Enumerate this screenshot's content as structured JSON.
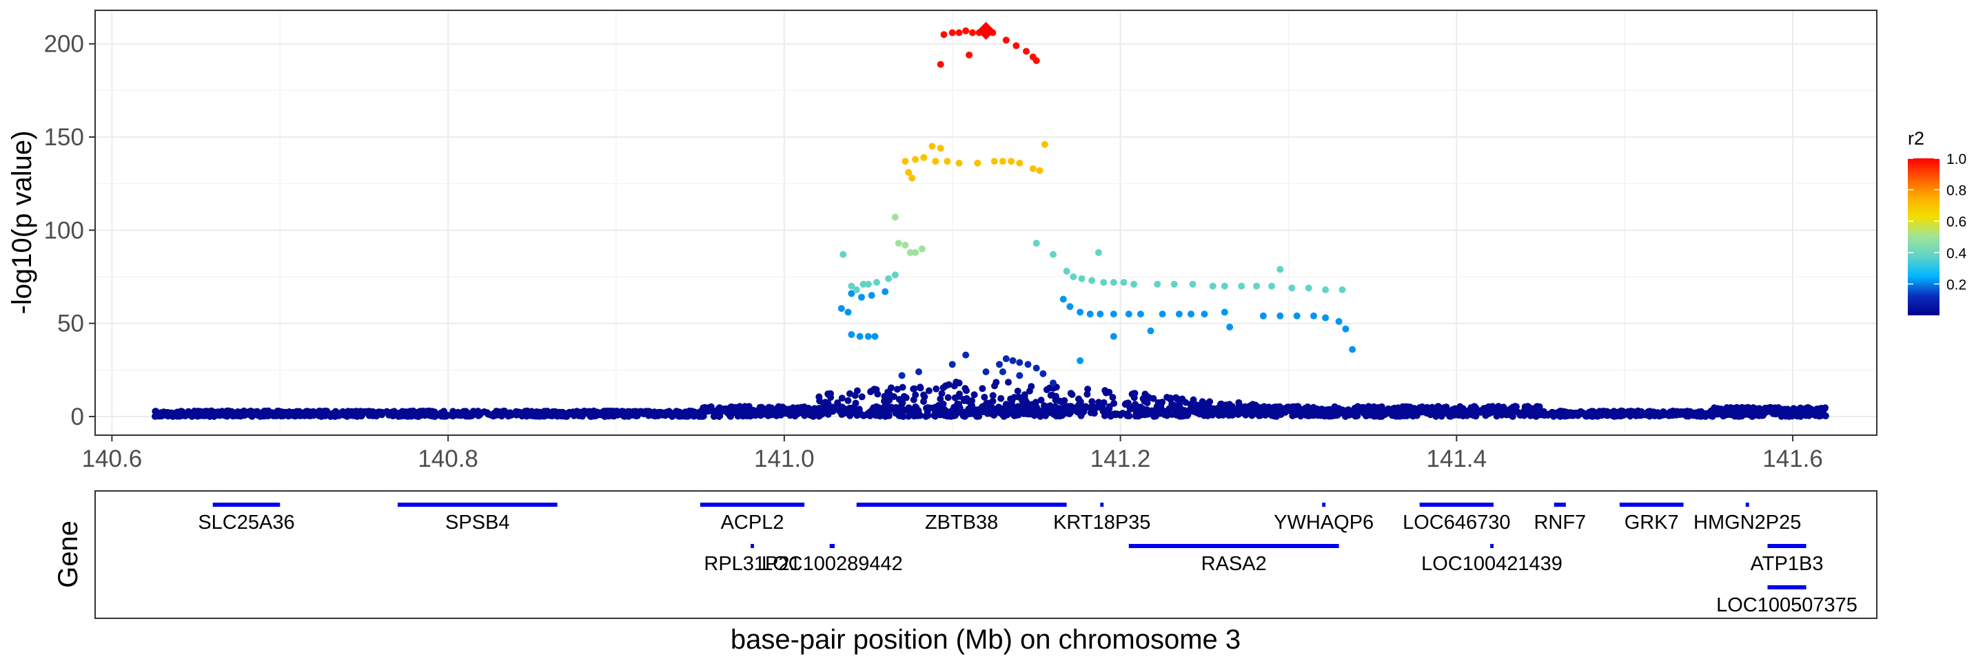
{
  "chart_data": [
    {
      "type": "scatter",
      "panel": "association",
      "title": "",
      "xlabel": "",
      "ylabel": "-log10(p value)",
      "xlim": [
        140.59,
        141.65
      ],
      "ylim": [
        -10,
        218
      ],
      "x_ticks": [
        140.6,
        140.8,
        141.0,
        141.2,
        141.4,
        141.6
      ],
      "x_tick_labels": [
        "140.6",
        "140.8",
        "141.0",
        "141.2",
        "141.4",
        "141.6"
      ],
      "y_ticks": [
        0,
        50,
        100,
        150,
        200
      ],
      "y_tick_labels": [
        "0",
        "50",
        "100",
        "150",
        "200"
      ],
      "grid": true,
      "lead_variant": {
        "x": 141.12,
        "y": 207,
        "r2": 1.0,
        "shape": "diamond"
      },
      "highlight_points": [
        {
          "x": 141.093,
          "y": 189,
          "r2": 0.98
        },
        {
          "x": 141.095,
          "y": 205,
          "r2": 0.98
        },
        {
          "x": 141.1,
          "y": 206,
          "r2": 0.98
        },
        {
          "x": 141.104,
          "y": 206,
          "r2": 0.98
        },
        {
          "x": 141.108,
          "y": 207,
          "r2": 0.98
        },
        {
          "x": 141.112,
          "y": 206,
          "r2": 0.98
        },
        {
          "x": 141.116,
          "y": 206,
          "r2": 0.98
        },
        {
          "x": 141.11,
          "y": 194,
          "r2": 0.98
        },
        {
          "x": 141.124,
          "y": 206,
          "r2": 0.98
        },
        {
          "x": 141.132,
          "y": 202,
          "r2": 0.98
        },
        {
          "x": 141.138,
          "y": 199,
          "r2": 0.98
        },
        {
          "x": 141.144,
          "y": 196,
          "r2": 0.98
        },
        {
          "x": 141.148,
          "y": 193,
          "r2": 0.98
        },
        {
          "x": 141.15,
          "y": 191,
          "r2": 0.98
        },
        {
          "x": 141.072,
          "y": 137,
          "r2": 0.7
        },
        {
          "x": 141.074,
          "y": 131,
          "r2": 0.7
        },
        {
          "x": 141.076,
          "y": 128,
          "r2": 0.7
        },
        {
          "x": 141.078,
          "y": 138,
          "r2": 0.7
        },
        {
          "x": 141.083,
          "y": 139,
          "r2": 0.7
        },
        {
          "x": 141.088,
          "y": 145,
          "r2": 0.7
        },
        {
          "x": 141.09,
          "y": 137,
          "r2": 0.7
        },
        {
          "x": 141.093,
          "y": 144,
          "r2": 0.7
        },
        {
          "x": 141.097,
          "y": 137,
          "r2": 0.7
        },
        {
          "x": 141.104,
          "y": 136,
          "r2": 0.7
        },
        {
          "x": 141.115,
          "y": 136,
          "r2": 0.7
        },
        {
          "x": 141.125,
          "y": 137,
          "r2": 0.7
        },
        {
          "x": 141.13,
          "y": 137,
          "r2": 0.7
        },
        {
          "x": 141.135,
          "y": 137,
          "r2": 0.7
        },
        {
          "x": 141.14,
          "y": 136,
          "r2": 0.7
        },
        {
          "x": 141.148,
          "y": 133,
          "r2": 0.7
        },
        {
          "x": 141.152,
          "y": 132,
          "r2": 0.7
        },
        {
          "x": 141.155,
          "y": 146,
          "r2": 0.7
        },
        {
          "x": 141.066,
          "y": 107,
          "r2": 0.5
        },
        {
          "x": 141.068,
          "y": 93,
          "r2": 0.5
        },
        {
          "x": 141.072,
          "y": 92,
          "r2": 0.5
        },
        {
          "x": 141.075,
          "y": 88,
          "r2": 0.5
        },
        {
          "x": 141.078,
          "y": 88,
          "r2": 0.5
        },
        {
          "x": 141.082,
          "y": 90,
          "r2": 0.5
        },
        {
          "x": 141.035,
          "y": 87,
          "r2": 0.38
        },
        {
          "x": 141.04,
          "y": 70,
          "r2": 0.38
        },
        {
          "x": 141.043,
          "y": 68,
          "r2": 0.38
        },
        {
          "x": 141.047,
          "y": 71,
          "r2": 0.38
        },
        {
          "x": 141.05,
          "y": 71,
          "r2": 0.38
        },
        {
          "x": 141.055,
          "y": 72,
          "r2": 0.38
        },
        {
          "x": 141.062,
          "y": 74,
          "r2": 0.38
        },
        {
          "x": 141.066,
          "y": 76,
          "r2": 0.38
        },
        {
          "x": 141.15,
          "y": 93,
          "r2": 0.38
        },
        {
          "x": 141.16,
          "y": 87,
          "r2": 0.38
        },
        {
          "x": 141.168,
          "y": 78,
          "r2": 0.38
        },
        {
          "x": 141.172,
          "y": 75,
          "r2": 0.38
        },
        {
          "x": 141.177,
          "y": 74,
          "r2": 0.38
        },
        {
          "x": 141.183,
          "y": 73,
          "r2": 0.38
        },
        {
          "x": 141.187,
          "y": 88,
          "r2": 0.38
        },
        {
          "x": 141.19,
          "y": 72,
          "r2": 0.38
        },
        {
          "x": 141.196,
          "y": 72,
          "r2": 0.38
        },
        {
          "x": 141.202,
          "y": 72,
          "r2": 0.38
        },
        {
          "x": 141.208,
          "y": 71,
          "r2": 0.38
        },
        {
          "x": 141.222,
          "y": 71,
          "r2": 0.38
        },
        {
          "x": 141.232,
          "y": 71,
          "r2": 0.38
        },
        {
          "x": 141.243,
          "y": 71,
          "r2": 0.38
        },
        {
          "x": 141.255,
          "y": 70,
          "r2": 0.38
        },
        {
          "x": 141.262,
          "y": 70,
          "r2": 0.38
        },
        {
          "x": 141.272,
          "y": 70,
          "r2": 0.38
        },
        {
          "x": 141.281,
          "y": 70,
          "r2": 0.38
        },
        {
          "x": 141.29,
          "y": 70,
          "r2": 0.38
        },
        {
          "x": 141.295,
          "y": 79,
          "r2": 0.38
        },
        {
          "x": 141.302,
          "y": 69,
          "r2": 0.38
        },
        {
          "x": 141.312,
          "y": 69,
          "r2": 0.38
        },
        {
          "x": 141.322,
          "y": 68,
          "r2": 0.38
        },
        {
          "x": 141.332,
          "y": 68,
          "r2": 0.38
        },
        {
          "x": 141.034,
          "y": 58,
          "r2": 0.22
        },
        {
          "x": 141.038,
          "y": 56,
          "r2": 0.22
        },
        {
          "x": 141.04,
          "y": 44,
          "r2": 0.22
        },
        {
          "x": 141.045,
          "y": 43,
          "r2": 0.22
        },
        {
          "x": 141.05,
          "y": 43,
          "r2": 0.22
        },
        {
          "x": 141.054,
          "y": 43,
          "r2": 0.22
        },
        {
          "x": 141.04,
          "y": 66,
          "r2": 0.22
        },
        {
          "x": 141.046,
          "y": 64,
          "r2": 0.22
        },
        {
          "x": 141.052,
          "y": 65,
          "r2": 0.22
        },
        {
          "x": 141.06,
          "y": 67,
          "r2": 0.22
        },
        {
          "x": 141.166,
          "y": 63,
          "r2": 0.22
        },
        {
          "x": 141.17,
          "y": 59,
          "r2": 0.22
        },
        {
          "x": 141.176,
          "y": 56,
          "r2": 0.22
        },
        {
          "x": 141.182,
          "y": 55,
          "r2": 0.22
        },
        {
          "x": 141.188,
          "y": 55,
          "r2": 0.22
        },
        {
          "x": 141.196,
          "y": 55,
          "r2": 0.22
        },
        {
          "x": 141.205,
          "y": 55,
          "r2": 0.22
        },
        {
          "x": 141.212,
          "y": 55,
          "r2": 0.22
        },
        {
          "x": 141.218,
          "y": 46,
          "r2": 0.22
        },
        {
          "x": 141.225,
          "y": 55,
          "r2": 0.22
        },
        {
          "x": 141.235,
          "y": 55,
          "r2": 0.22
        },
        {
          "x": 141.242,
          "y": 55,
          "r2": 0.22
        },
        {
          "x": 141.25,
          "y": 55,
          "r2": 0.22
        },
        {
          "x": 141.262,
          "y": 56,
          "r2": 0.22
        },
        {
          "x": 141.265,
          "y": 48,
          "r2": 0.22
        },
        {
          "x": 141.285,
          "y": 54,
          "r2": 0.22
        },
        {
          "x": 141.295,
          "y": 54,
          "r2": 0.22
        },
        {
          "x": 141.305,
          "y": 54,
          "r2": 0.22
        },
        {
          "x": 141.315,
          "y": 54,
          "r2": 0.22
        },
        {
          "x": 141.322,
          "y": 53,
          "r2": 0.22
        },
        {
          "x": 141.33,
          "y": 51,
          "r2": 0.22
        },
        {
          "x": 141.334,
          "y": 47,
          "r2": 0.22
        },
        {
          "x": 141.338,
          "y": 36,
          "r2": 0.22
        },
        {
          "x": 141.176,
          "y": 30,
          "r2": 0.22
        },
        {
          "x": 141.196,
          "y": 43,
          "r2": 0.22
        },
        {
          "x": 141.07,
          "y": 22,
          "r2": 0.1
        },
        {
          "x": 141.08,
          "y": 24,
          "r2": 0.1
        },
        {
          "x": 141.1,
          "y": 28,
          "r2": 0.1
        },
        {
          "x": 141.108,
          "y": 33,
          "r2": 0.1
        },
        {
          "x": 141.12,
          "y": 24,
          "r2": 0.1
        },
        {
          "x": 141.128,
          "y": 28,
          "r2": 0.1
        },
        {
          "x": 141.132,
          "y": 31,
          "r2": 0.1
        },
        {
          "x": 141.136,
          "y": 30,
          "r2": 0.1
        },
        {
          "x": 141.14,
          "y": 29,
          "r2": 0.1
        },
        {
          "x": 141.145,
          "y": 28,
          "r2": 0.1
        },
        {
          "x": 141.15,
          "y": 26,
          "r2": 0.1
        },
        {
          "x": 141.154,
          "y": 23,
          "r2": 0.1
        },
        {
          "x": 141.16,
          "y": 18,
          "r2": 0.1
        },
        {
          "x": 141.13,
          "y": 24,
          "r2": 0.1
        },
        {
          "x": 141.14,
          "y": 22,
          "r2": 0.1
        }
      ],
      "background_points": {
        "x_range": [
          140.625,
          141.62
        ],
        "r2": 0.02,
        "y_baseline_max": 3,
        "peak_region_x": [
          141.02,
          141.34
        ],
        "peak_region_y_max": 20
      },
      "colorbar": {
        "title": "r2",
        "range": [
          0,
          1
        ],
        "tick_values": [
          0.2,
          0.4,
          0.6,
          0.8,
          1.0
        ],
        "tick_labels": [
          "0.2",
          "0.4",
          "0.6",
          "0.8",
          "1.0"
        ],
        "color_stops": [
          "#00008b",
          "#0b2fbf",
          "#00b7ff",
          "#5fd3c8",
          "#9fe39a",
          "#f0e000",
          "#ffae00",
          "#ff5a00",
          "#ff0000"
        ]
      }
    },
    {
      "type": "gene-track",
      "panel": "genes",
      "ylabel": "Gene",
      "xlabel": "base-pair position (Mb) on chromosome 3",
      "xlim": [
        140.59,
        141.65
      ],
      "color": "#0000ee",
      "genes": [
        {
          "name": "SLC25A36",
          "start": 140.66,
          "end": 140.7,
          "row": 1
        },
        {
          "name": "SPSB4",
          "start": 140.77,
          "end": 140.865,
          "row": 1
        },
        {
          "name": "ACPL2",
          "start": 140.95,
          "end": 141.012,
          "row": 1
        },
        {
          "name": "ZBTB38",
          "start": 141.043,
          "end": 141.168,
          "row": 1
        },
        {
          "name": "KRT18P35",
          "start": 141.188,
          "end": 141.19,
          "row": 1
        },
        {
          "name": "YWHAQP6",
          "start": 141.32,
          "end": 141.322,
          "row": 1
        },
        {
          "name": "LOC646730",
          "start": 141.378,
          "end": 141.422,
          "row": 1
        },
        {
          "name": "RNF7",
          "start": 141.458,
          "end": 141.465,
          "row": 1
        },
        {
          "name": "GRK7",
          "start": 141.497,
          "end": 141.535,
          "row": 1
        },
        {
          "name": "HMGN2P25",
          "start": 141.572,
          "end": 141.574,
          "row": 1
        },
        {
          "name": "RPL31P21",
          "start": 140.98,
          "end": 140.982,
          "row": 2
        },
        {
          "name": "LOC100289442",
          "start": 141.027,
          "end": 141.03,
          "row": 2
        },
        {
          "name": "RASA2",
          "start": 141.205,
          "end": 141.33,
          "row": 2
        },
        {
          "name": "LOC100421439",
          "start": 141.42,
          "end": 141.422,
          "row": 2
        },
        {
          "name": "ATP1B3",
          "start": 141.585,
          "end": 141.608,
          "row": 2
        },
        {
          "name": "LOC100507375",
          "start": 141.585,
          "end": 141.608,
          "row": 3
        }
      ]
    }
  ]
}
